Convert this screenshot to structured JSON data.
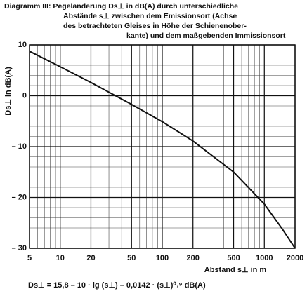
{
  "chart_data": {
    "type": "line",
    "title_lines": [
      "Diagramm III: Pegeländerung Ds⊥ in dB(A) durch unterschiedliche",
      "Abstände s⊥ zwischen dem Emissionsort (Achse",
      "des betrachteten Gleises in Höhe der Schienenober-",
      "kante) und dem maßgebenden Immissionsort"
    ],
    "y_label": "Ds⊥ in dB(A)",
    "x_label": "Abstand s⊥ in m",
    "formula": "Ds⊥ = 15,8 – 10 · lg (s⊥) – 0,0142 · (s⊥)⁰˒⁹ dB(A)",
    "x": [
      5,
      10,
      20,
      50,
      100,
      200,
      500,
      1000,
      1500,
      2000
    ],
    "values": [
      8.75,
      5.7,
      2.6,
      -1.7,
      -5.1,
      -8.9,
      -15,
      -21.3,
      -26.2,
      -30
    ],
    "color": "#111111",
    "xscale": "log",
    "xlim": [
      5,
      2000
    ],
    "ylim": [
      -30,
      10
    ],
    "xticks": [
      5,
      10,
      20,
      50,
      100,
      200,
      500,
      1000,
      2000
    ],
    "yticks": [
      10,
      0,
      {
        "value": -10,
        "label": "– 10"
      },
      {
        "value": -20,
        "label": "– 20"
      },
      {
        "value": -30,
        "label": "– 30"
      }
    ],
    "grid": true
  }
}
